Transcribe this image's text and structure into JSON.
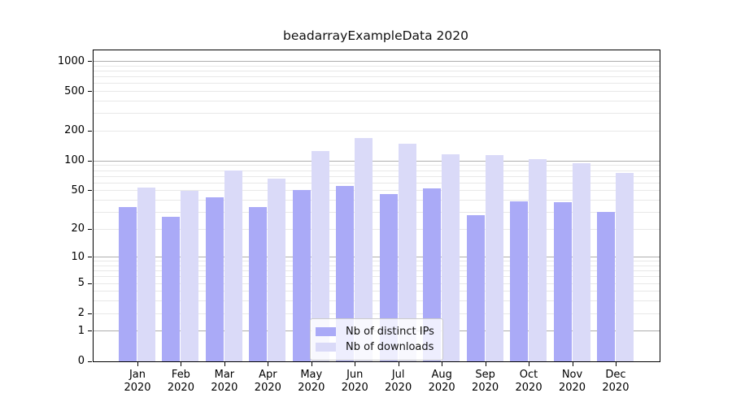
{
  "chart_data": {
    "type": "bar",
    "title": "beadarrayExampleData 2020",
    "scale": "log10(1+y)",
    "categories": [
      "Jan",
      "Feb",
      "Mar",
      "Apr",
      "May",
      "Jun",
      "Jul",
      "Aug",
      "Sep",
      "Oct",
      "Nov",
      "Dec"
    ],
    "category_year": "2020",
    "series": [
      {
        "name": "Nb of distinct IPs",
        "color": "#aaaaf7",
        "values": [
          34,
          27,
          43,
          34,
          51,
          56,
          46,
          53,
          28,
          39,
          38,
          30
        ]
      },
      {
        "name": "Nb of downloads",
        "color": "#dadaf8",
        "values": [
          54,
          50,
          80,
          66,
          125,
          170,
          150,
          117,
          114,
          104,
          95,
          75
        ]
      }
    ],
    "ylabel": "",
    "xlabel": "",
    "ylim": [
      0,
      1290
    ],
    "y_ticks": [
      0,
      1,
      2,
      5,
      10,
      20,
      50,
      100,
      200,
      500,
      1000
    ],
    "major_gridlines": [
      1,
      10,
      100,
      1000
    ],
    "minor_gridlines": [
      2,
      3,
      4,
      5,
      6,
      7,
      8,
      9,
      20,
      30,
      40,
      50,
      60,
      70,
      80,
      90,
      200,
      300,
      400,
      500,
      600,
      700,
      800,
      900
    ],
    "grid": "on",
    "legend_position": "lower center inside plot",
    "colors": {
      "bar_distinct_ips": "#aaaaf7",
      "bar_downloads": "#dadaf8",
      "grid_major": "#aeaeae",
      "grid_minor": "#e8e8e8",
      "axis": "#000000",
      "text": "#111111",
      "legend_border": "#cccccc"
    }
  }
}
